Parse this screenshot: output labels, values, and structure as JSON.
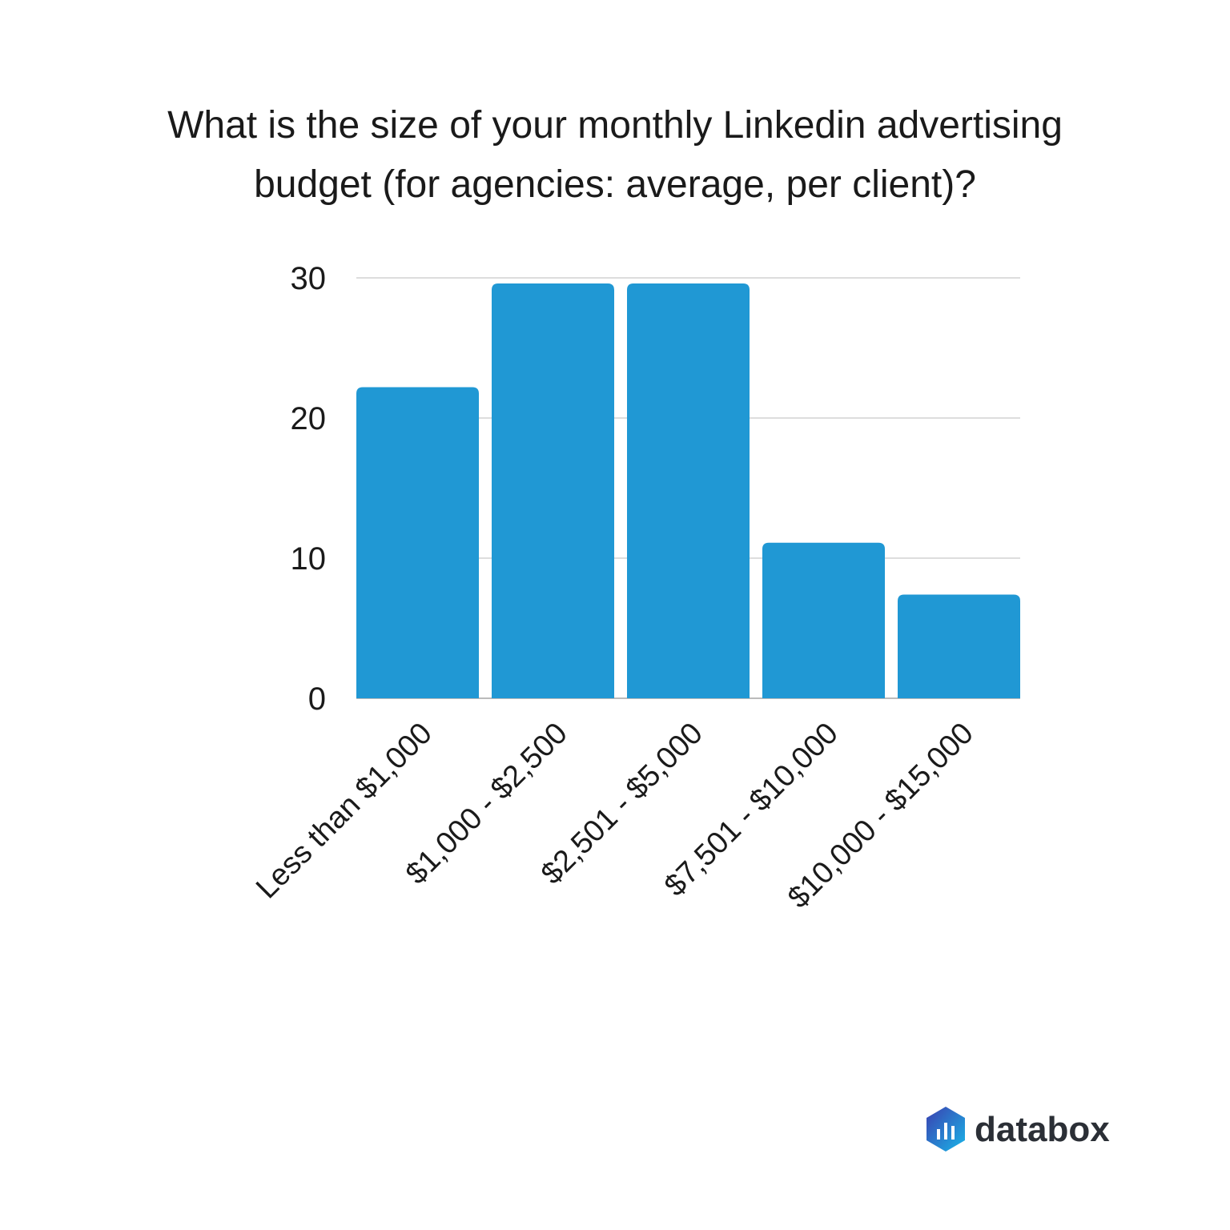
{
  "chart_data": {
    "type": "bar",
    "title": "What is the size of your monthly Linkedin advertising budget (for agencies: average, per client)?",
    "title_lines": [
      "What is the size of your monthly Linkedin advertising",
      "budget (for agencies: average, per client)?"
    ],
    "categories": [
      "Less than $1,000",
      "$1,000 - $2,500",
      "$2,501 - $5,000",
      "$7,501 - $10,000",
      "$10,000 - $15,000"
    ],
    "values": [
      22.2,
      29.6,
      29.6,
      11.1,
      7.4
    ],
    "xlabel": "",
    "ylabel": "",
    "ylim": [
      0,
      30
    ],
    "yticks": [
      0,
      10,
      20,
      30
    ],
    "grid": true,
    "bar_color": "#2098d4",
    "x_label_rotation_deg": -45
  },
  "branding": {
    "logo_text": "databox"
  }
}
